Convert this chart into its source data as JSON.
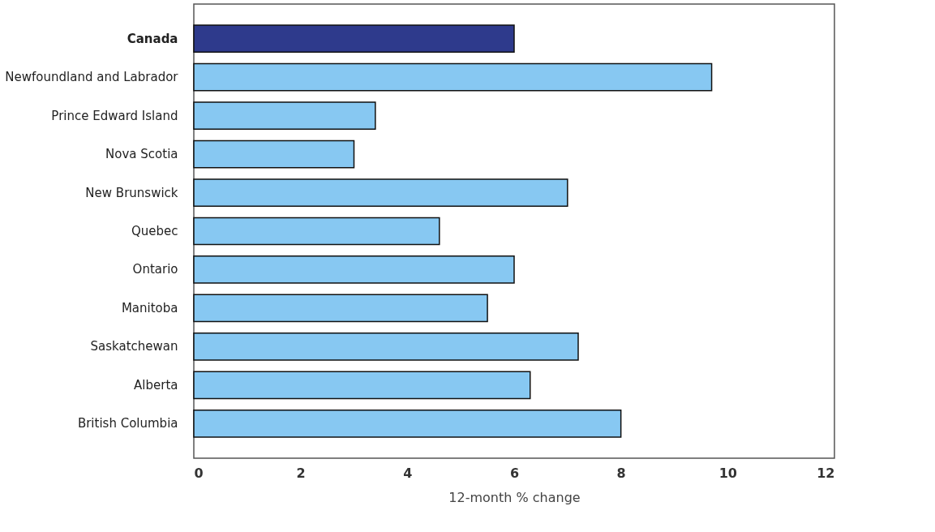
{
  "chart_data": {
    "type": "bar",
    "orientation": "horizontal",
    "xlabel": "12-month % change",
    "categories": [
      "Canada",
      "Newfoundland and Labrador",
      "Prince Edward Island",
      "Nova Scotia",
      "New Brunswick",
      "Quebec",
      "Ontario",
      "Manitoba",
      "Saskatchewan",
      "Alberta",
      "British Columbia"
    ],
    "values": [
      6.0,
      9.7,
      3.4,
      3.0,
      7.0,
      4.6,
      6.0,
      5.5,
      7.2,
      6.3,
      8.0
    ],
    "colors": [
      "#2e3a8c",
      "#87c8f2",
      "#87c8f2",
      "#87c8f2",
      "#87c8f2",
      "#87c8f2",
      "#87c8f2",
      "#87c8f2",
      "#87c8f2",
      "#87c8f2",
      "#87c8f2"
    ],
    "xlim": [
      0,
      12
    ],
    "xticks": [
      0,
      2,
      4,
      6,
      8,
      10,
      12
    ],
    "grid": false
  }
}
